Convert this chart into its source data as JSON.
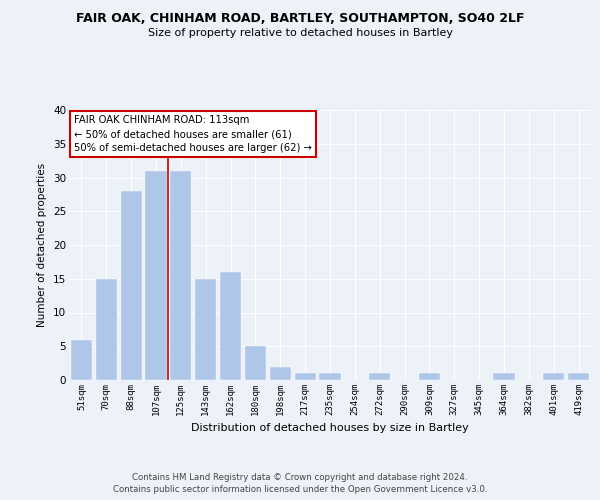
{
  "title": "FAIR OAK, CHINHAM ROAD, BARTLEY, SOUTHAMPTON, SO40 2LF",
  "subtitle": "Size of property relative to detached houses in Bartley",
  "xlabel": "Distribution of detached houses by size in Bartley",
  "ylabel": "Number of detached properties",
  "categories": [
    "51sqm",
    "70sqm",
    "88sqm",
    "107sqm",
    "125sqm",
    "143sqm",
    "162sqm",
    "180sqm",
    "198sqm",
    "217sqm",
    "235sqm",
    "254sqm",
    "272sqm",
    "290sqm",
    "309sqm",
    "327sqm",
    "345sqm",
    "364sqm",
    "382sqm",
    "401sqm",
    "419sqm"
  ],
  "values": [
    6,
    15,
    28,
    31,
    31,
    15,
    16,
    5,
    2,
    1,
    1,
    0,
    1,
    0,
    1,
    0,
    0,
    1,
    0,
    1,
    1
  ],
  "bar_color": "#aec6e8",
  "bar_edge_color": "#aec6e8",
  "vline_x": 3.5,
  "vline_color": "#cc0000",
  "annotation_text": "FAIR OAK CHINHAM ROAD: 113sqm\n← 50% of detached houses are smaller (61)\n50% of semi-detached houses are larger (62) →",
  "annotation_box_color": "#ffffff",
  "annotation_box_edge_color": "#cc0000",
  "ylim": [
    0,
    40
  ],
  "yticks": [
    0,
    5,
    10,
    15,
    20,
    25,
    30,
    35,
    40
  ],
  "footer": "Contains HM Land Registry data © Crown copyright and database right 2024.\nContains public sector information licensed under the Open Government Licence v3.0.",
  "background_color": "#edf2f8",
  "plot_background_color": "#edf2f8"
}
